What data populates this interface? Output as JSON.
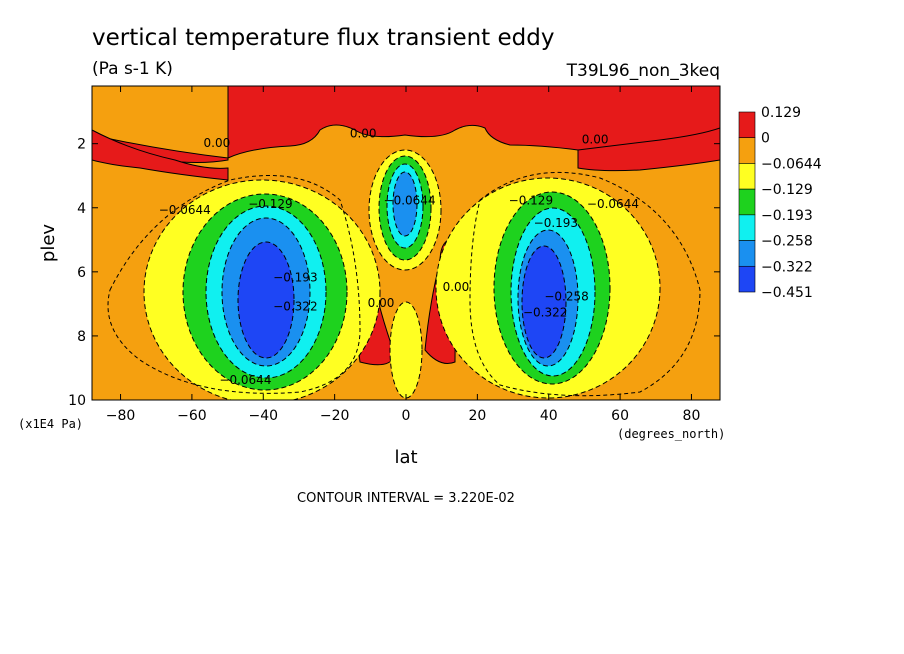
{
  "chart_data": {
    "type": "contour",
    "title": "vertical temperature flux transient eddy",
    "units": "(Pa s-1 K)",
    "dataset": "T39L96_non_3keq",
    "xlabel": "lat",
    "x_units": "(degrees_north)",
    "ylabel": "plev",
    "y_units": "(x1E4 Pa)",
    "xlim": [
      -88,
      88
    ],
    "ylim": [
      10,
      0.2
    ],
    "x_ticks": [
      -80,
      -60,
      -40,
      -20,
      0,
      20,
      40,
      60,
      80
    ],
    "y_ticks": [
      2,
      4,
      6,
      8,
      10
    ],
    "y_tick_labels": [
      "2",
      "4",
      "6",
      "8",
      "10"
    ],
    "x_tick_labels": [
      "−80",
      "−60",
      "−40",
      "−20",
      "0",
      "20",
      "40",
      "60",
      "80"
    ],
    "contour_interval": "CONTOUR INTERVAL = 3.220E-02",
    "colorbar": {
      "labels": [
        "0.129",
        "0",
        "−0.0644",
        "−0.129",
        "−0.193",
        "−0.258",
        "−0.322",
        "−0.451"
      ],
      "colors": [
        "#e61a1a",
        "#f5a00f",
        "#ffff22",
        "#1ed21e",
        "#10f0f0",
        "#1a90f0",
        "#1e46f5"
      ]
    },
    "background_color": "#f5a00f",
    "contour_labels": [
      {
        "text": "0.00",
        "lat": -53,
        "plev": 2.1
      },
      {
        "text": "0.00",
        "lat": -12,
        "plev": 1.8
      },
      {
        "text": "0.00",
        "lat": 53,
        "plev": 2.0
      },
      {
        "text": "−0.0644",
        "lat": -62,
        "plev": 4.2
      },
      {
        "text": "−0.129",
        "lat": -38,
        "plev": 4.0
      },
      {
        "text": "−0.129",
        "lat": 35,
        "plev": 3.9
      },
      {
        "text": "−0.0644",
        "lat": 58,
        "plev": 4.0
      },
      {
        "text": "−0.193",
        "lat": 42,
        "plev": 4.6
      },
      {
        "text": "−0.258",
        "lat": 45,
        "plev": 6.9
      },
      {
        "text": "−0.322",
        "lat": 39,
        "plev": 7.4
      },
      {
        "text": "−0.193",
        "lat": -31,
        "plev": 6.3
      },
      {
        "text": "−0.322",
        "lat": -31,
        "plev": 7.2
      },
      {
        "text": "−0.0644",
        "lat": 1,
        "plev": 3.9
      },
      {
        "text": "0.00",
        "lat": -7,
        "plev": 7.1
      },
      {
        "text": "0.00",
        "lat": 14,
        "plev": 6.6
      },
      {
        "text": "−0.0644",
        "lat": -45,
        "plev": 9.5
      }
    ]
  }
}
